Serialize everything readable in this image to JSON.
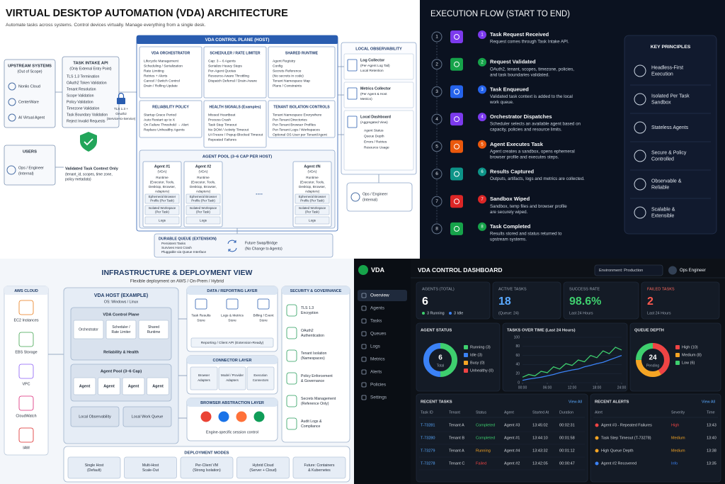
{
  "architecture": {
    "title": "VIRTUAL DESKTOP AUTOMATION (VDA) ARCHITECTURE",
    "subtitle": "Automate tasks across systems. Control devices virtually. Manage everything from a single desk.",
    "upstream": {
      "title": "UPSTREAM SYSTEMS",
      "subtitle": "(Out of Scope)",
      "items": [
        "Nonlio Cloud",
        "CenterWare",
        "AI Virtual Agent"
      ]
    },
    "intake": {
      "title": "TASK INTAKE API",
      "subtitle": "(Only External Entry Point)",
      "items": [
        "TLS 1.3 Termination",
        "OAuth2 Token Validation",
        "Tenant Resolution",
        "Scope Validation",
        "Policy Validation",
        "Timezone Validation",
        "Task Boundary Validation",
        "Reject Invalid Requests"
      ]
    },
    "auth_label": [
      "TLS 1.3 +",
      "OAuth2",
      "(Service-to-Service)"
    ],
    "users": {
      "title": "USERS",
      "items": [
        "Ops / Engineer",
        "(Internal)"
      ]
    },
    "validated": {
      "title": "Validated Task Context Only",
      "detail": [
        "(tenant_id, scopes, time zone,",
        "policy metadata)"
      ]
    },
    "control_plane": {
      "title": "VDA CONTROL PLANE (HOST)",
      "orchestrator": {
        "title": "VDA ORCHESTRATOR",
        "items": [
          "Lifecycle Management",
          "Scheduling / Serialization",
          "Rate Limiting",
          "Retries + Alerts",
          "Cancel / Switch Control",
          "Drain / Rolling Update"
        ]
      },
      "scheduler": {
        "title": "SCHEDULER / RATE LIMITER",
        "items": [
          "Cap: 3 – 6 Agents",
          "Serialize Heavy Steps",
          "Per-Agent Quotas",
          "Resource-Aware Throttling",
          "Dispatch Deferral / Drain-Aware"
        ]
      },
      "shared_runtime": {
        "title": "SHARED RUNTIME",
        "items": [
          "Agent Registry",
          "Config",
          "Secrets Reference",
          "(No secrets in code)",
          "Tenant Namespace Map",
          "Plans / Constraints"
        ]
      },
      "reliability": {
        "title": "RELIABILITY POLICY",
        "items": [
          "Startup Grace Period",
          "Auto Restart up to X",
          "On Failure Threshold → Alert",
          "Replace Unhealthy Agents"
        ]
      },
      "health": {
        "title": "HEALTH SIGNALS (Examples)",
        "items": [
          "Missed Heartbeat",
          "Process Crash",
          "Task Step Timeout",
          "No DOM / Activity Timeout",
          "UI Freeze / Popup Blocked Timeout",
          "Repeated Failures"
        ]
      },
      "tenant_isolation": {
        "title": "TENANT ISOLATION CONTROLS",
        "items": [
          "Tenant Namespace Everywhere",
          "Per-Tenant Directories",
          "Per-Tenant Browser Profiles",
          "Per-Tenant Logs / Workspaces",
          "Optional OS User per Tenant/Agent"
        ]
      }
    },
    "agent_pool": {
      "title": "AGENT POOL (3–6 CAP PER HOST)",
      "agents": [
        "Agent #1",
        "Agent #2",
        "Agent #N"
      ],
      "agent_kind": "(VDA)",
      "runtime": [
        "Runtime",
        "(Executor, Tools,",
        "Desktop, Browser,",
        "Adapters)"
      ],
      "ephemeral": [
        "Ephemeral Browser",
        "Profile (Per Task)"
      ],
      "isolated": [
        "Isolated Workspace",
        "(Per Task)"
      ],
      "logs": "Logs",
      "ellipsis": "...."
    },
    "durable_queue": {
      "title": "DURABLE QUEUE (EXTENSION)",
      "items": [
        "Persistent Tasks",
        "Survives Host Crash",
        "Pluggable via Queue Interface"
      ],
      "future": [
        "Future Swap/Bridge",
        "(No Change to Agents)"
      ]
    },
    "observability": {
      "title": "LOCAL OBSERVABILITY",
      "log": {
        "title": "Log Collector",
        "detail": [
          "(Per-Agent Log Tail)",
          "Local Retention"
        ]
      },
      "metrics": {
        "title": "Metrics Collector",
        "detail": [
          "(Per Agent & Host",
          "Metrics)"
        ]
      },
      "dashboard": {
        "title": "Local Dashboard",
        "detail": [
          "(Aggregated View)"
        ],
        "items": [
          "Agent Status",
          "Queue Depth",
          "Errors / Retries",
          "Resource Usage"
        ]
      },
      "ops": [
        "Ops / Engineer",
        "(Internal)"
      ]
    }
  },
  "flow": {
    "title": "EXECUTION FLOW (START TO END)",
    "steps": [
      {
        "num": "1",
        "title": "Task Request Received",
        "desc": [
          "Request comes through Task Intake API."
        ]
      },
      {
        "num": "2",
        "title": "Request Validated",
        "desc": [
          "OAuth2, tenant, scopes, timezone, policies,",
          "and task boundaries validated."
        ]
      },
      {
        "num": "3",
        "title": "Task Enqueued",
        "desc": [
          "Validated task context is added to the local",
          "work queue."
        ]
      },
      {
        "num": "4",
        "title": "Orchestrator Dispatches",
        "desc": [
          "Scheduler selects an available agent based on",
          "capacity, policies and resource limits."
        ]
      },
      {
        "num": "5",
        "title": "Agent Executes Task",
        "desc": [
          "Agent creates a sandbox, opens ephemeral",
          "browser profile and executes steps."
        ]
      },
      {
        "num": "6",
        "title": "Results Captured",
        "desc": [
          "Outputs, artifacts, logs and metrics are collected."
        ]
      },
      {
        "num": "7",
        "title": "Sandbox Wiped",
        "desc": [
          "Sandbox, temp files and browser profile",
          "are securely wiped."
        ]
      },
      {
        "num": "8",
        "title": "Task Completed",
        "desc": [
          "Results stored and status returned to",
          "upstream systems."
        ]
      }
    ],
    "principles": {
      "title": "KEY PRINCIPLES",
      "items": [
        [
          "Headless-First",
          "Execution"
        ],
        [
          "Isolated Per Task",
          "Sandbox"
        ],
        [
          "Stateless Agents"
        ],
        [
          "Secure & Policy",
          "Controlled"
        ],
        [
          "Observable &",
          "Reliable"
        ],
        [
          "Scalable &",
          "Extensible"
        ]
      ]
    }
  },
  "infrastructure": {
    "title": "INFRASTRUCTURE & DEPLOYMENT VIEW",
    "subtitle": "Flexible deployment on AWS / On-Prem / Hybrid",
    "aws": {
      "title": "AWS CLOUD",
      "items": [
        "EC2 Instances",
        "EBS Storage",
        "VPC",
        "CloudWatch",
        "IAM"
      ]
    },
    "host": {
      "title": "VDA HOST (EXAMPLE)",
      "subtitle": "OS: Windows / Linux",
      "control_plane": {
        "title": "VDA Control Plane",
        "parts": [
          [
            "Orchestrator"
          ],
          [
            "Scheduler /",
            "Rate Limiter"
          ],
          [
            "Shared",
            "Runtime"
          ]
        ],
        "footer": "Reliability & Health"
      },
      "agent_pool": {
        "title": "Agent Pool (3–6 Cap)",
        "agents": [
          "Agent",
          "Agent",
          "Agent",
          "Agent"
        ]
      },
      "bottom": [
        "Local Observability",
        "Local Work Queue"
      ]
    },
    "data_layer": {
      "title": "DATA / REPORTING LAYER",
      "items": [
        [
          "Task Results",
          "Store"
        ],
        [
          "Logs & Metrics",
          "Store"
        ],
        [
          "Billing / Event",
          "Store"
        ]
      ],
      "api": "Reporting / Client API (Extension-Ready)"
    },
    "connector_layer": {
      "title": "CONNECTOR LAYER",
      "items": [
        [
          "Browser",
          "Adapters"
        ],
        [
          "Model / Provider",
          "Adapters"
        ],
        [
          "Execution",
          "Connectors"
        ]
      ]
    },
    "browser_layer": {
      "title": "BROWSER ABSTRACTION LAYER",
      "caption": "Engine-specific session control"
    },
    "security": {
      "title": "SECURITY & GOVERNANCE",
      "items": [
        [
          "TLS 1.3",
          "Encryption"
        ],
        [
          "OAuth2",
          "Authentication"
        ],
        [
          "Tenant Isolation",
          "(Namespaces)"
        ],
        [
          "Policy Enforcement",
          "& Governance"
        ],
        [
          "Secrets Management",
          "(Reference Only)"
        ],
        [
          "Audit Logs &",
          "Compliance"
        ]
      ]
    },
    "deployment": {
      "title": "DEPLOYMENT MODES",
      "items": [
        [
          "Single Host",
          "(Default)"
        ],
        [
          "Multi-Host",
          "Scale-Out"
        ],
        [
          "Per-Client VM",
          "(Strong Isolation)"
        ],
        [
          "Hybrid Cloud",
          "(Server + Cloud)"
        ],
        [
          "Future: Containers",
          "& Kubernetes"
        ]
      ]
    }
  },
  "dashboard": {
    "logo": "VDA",
    "title": "VDA CONTROL DASHBOARD",
    "environment": "Environment: Production",
    "user": "Ops Engineer",
    "nav": [
      "Overview",
      "Agents",
      "Tasks",
      "Queues",
      "Logs",
      "Metrics",
      "Alerts",
      "Policies",
      "Settings"
    ],
    "kpis": [
      {
        "label": "AGENTS (TOTAL)",
        "value": "6",
        "sub": [
          "3 Running",
          "3 Idle"
        ]
      },
      {
        "label": "ACTIVE TASKS",
        "value": "18",
        "sub": [
          "(Queue: 24)"
        ]
      },
      {
        "label": "SUCCESS RATE",
        "value": "98.6%",
        "sub": [
          "Last 24 Hours"
        ]
      },
      {
        "label": "FAILED TASKS",
        "value": "2",
        "sub": [
          "Last 24 Hours"
        ]
      }
    ],
    "agent_status": {
      "title": "AGENT STATUS",
      "center": "6",
      "center_label": "Total",
      "segments": [
        {
          "label": "Running (3)",
          "value": 3,
          "color": "#3ecf6e"
        },
        {
          "label": "Idle (3)",
          "value": 3,
          "color": "#3b82f6"
        },
        {
          "label": "Busy (0)",
          "value": 0,
          "color": "#f5a524"
        },
        {
          "label": "Unhealthy (0)",
          "value": 0,
          "color": "#ef4444"
        }
      ]
    },
    "tasks_chart": {
      "title": "TASKS OVER TIME (Last 24 Hours)",
      "xlim": [
        0,
        24
      ],
      "ylim": [
        0,
        100
      ],
      "yticks": [
        0,
        20,
        40,
        60,
        80,
        100
      ],
      "xticks": [
        {
          "value": 0,
          "label": "00:00"
        },
        {
          "value": 6,
          "label": "06:00"
        },
        {
          "value": 12,
          "label": "12:00"
        },
        {
          "value": 18,
          "label": "18:00"
        },
        {
          "value": 24,
          "label": "24:00"
        }
      ],
      "x": [
        0,
        1.5,
        3,
        4.5,
        6,
        7.5,
        9,
        10.5,
        12,
        13.5,
        15,
        16.5,
        18,
        19.5,
        21,
        22.5,
        24
      ],
      "series": [
        {
          "color": "#3ecf6e",
          "values": [
            12,
            18,
            15,
            25,
            22,
            35,
            30,
            42,
            38,
            50,
            46,
            60,
            55,
            70,
            64,
            78,
            72
          ]
        },
        {
          "color": "#3b82f6",
          "values": [
            5,
            8,
            10,
            12,
            15,
            18,
            22,
            25,
            28,
            30,
            35,
            38,
            42,
            45,
            50,
            55,
            60
          ]
        }
      ]
    },
    "queue_depth": {
      "title": "QUEUE DEPTH",
      "center": "24",
      "center_label": "Pending",
      "segments": [
        {
          "label": "High (10)",
          "value": 10,
          "color": "#ef4444"
        },
        {
          "label": "Medium (8)",
          "value": 8,
          "color": "#f5a524"
        },
        {
          "label": "Low (6)",
          "value": 6,
          "color": "#3ecf6e"
        }
      ]
    },
    "recent_tasks": {
      "title": "RECENT TASKS",
      "view_all": "View All",
      "columns": [
        "Task ID",
        "Tenant",
        "Status",
        "Agent",
        "Started At",
        "Duration"
      ],
      "rows": [
        [
          "T-73281",
          "Tenant A",
          "Completed",
          "Agent #3",
          "13:45:02",
          "00:02:31"
        ],
        [
          "T-73280",
          "Tenant B",
          "Completed",
          "Agent #1",
          "13:44:10",
          "00:01:58"
        ],
        [
          "T-73279",
          "Tenant A",
          "Running",
          "Agent #4",
          "13:43:32",
          "00:01:12"
        ],
        [
          "T-73278",
          "Tenant C",
          "Failed",
          "Agent #2",
          "13:42:05",
          "00:00:47"
        ]
      ],
      "status_colors": [
        "#3ecf6e",
        "#3ecf6e",
        "#f5a524",
        "#ef4444"
      ]
    },
    "recent_alerts": {
      "title": "RECENT ALERTS",
      "view_all": "View All",
      "columns": [
        "Alert",
        "Severity",
        "Time"
      ],
      "rows": [
        [
          "Agent #3 - Repeated Failures",
          "High",
          "13:43"
        ],
        [
          "Task Step Timeout (T-73278)",
          "Medium",
          "13:40"
        ],
        [
          "High Queue Depth",
          "Medium",
          "13:38"
        ],
        [
          "Agent #2 Recovered",
          "Info",
          "13:35"
        ]
      ],
      "severity_colors": [
        "#ef4444",
        "#f5a524",
        "#f5a524",
        "#3b82f6"
      ]
    }
  }
}
